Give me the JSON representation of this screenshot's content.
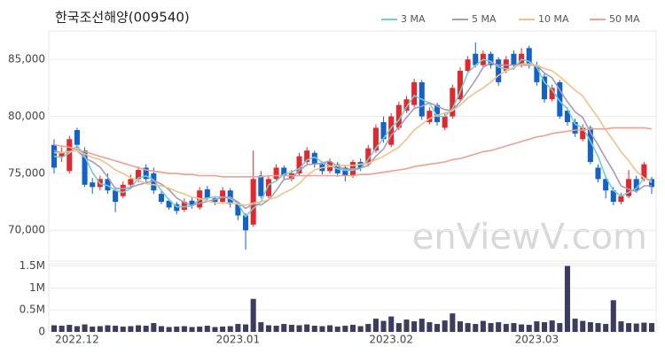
{
  "chart_data": {
    "type": "candlestick",
    "title": "한국조선해양(009540)",
    "watermark": "enViewV.com",
    "categories": [
      null,
      null,
      null,
      "2022.12",
      null,
      null,
      null,
      null,
      null,
      null,
      null,
      null,
      null,
      null,
      null,
      null,
      null,
      null,
      null,
      null,
      null,
      null,
      null,
      null,
      "2023.01",
      null,
      null,
      null,
      null,
      null,
      null,
      null,
      null,
      null,
      null,
      null,
      null,
      null,
      null,
      null,
      null,
      null,
      null,
      null,
      "2023.02",
      null,
      null,
      null,
      null,
      null,
      null,
      null,
      null,
      null,
      null,
      null,
      null,
      null,
      null,
      null,
      null,
      null,
      null,
      "2023.03",
      null,
      null,
      null,
      null,
      null,
      null,
      null,
      null,
      null,
      null,
      null,
      null,
      null,
      null,
      null
    ],
    "open": [
      77500,
      76500,
      75200,
      78800,
      77000,
      74200,
      73800,
      74500,
      73500,
      73000,
      74000,
      74500,
      75500,
      75000,
      73200,
      72600,
      72300,
      71800,
      72600,
      72000,
      73600,
      72800,
      72500,
      73500,
      72300,
      71300,
      70500,
      74800,
      73000,
      74500,
      75500,
      74500,
      75000,
      76000,
      76800,
      75800,
      75200,
      75800,
      75500,
      74800,
      76000,
      75800,
      77000,
      79500,
      77500,
      79000,
      80500,
      81000,
      83000,
      79500,
      81000,
      79000,
      80000,
      81500,
      84000,
      85500,
      84500,
      85500,
      85000,
      84000,
      85500,
      84500,
      86000,
      84500,
      83500,
      81500,
      83000,
      80500,
      79500,
      78000,
      79000,
      75500,
      74500,
      73500,
      72500,
      73000,
      74500,
      74500,
      74500
    ],
    "high": [
      78000,
      77300,
      78300,
      79000,
      77300,
      74600,
      74800,
      75000,
      73800,
      74300,
      74900,
      75600,
      75800,
      75500,
      73500,
      72800,
      72500,
      72800,
      72900,
      73800,
      73900,
      73000,
      73800,
      73700,
      72500,
      71500,
      77000,
      75200,
      74800,
      75800,
      75700,
      75300,
      76800,
      77300,
      77000,
      76000,
      76300,
      76000,
      75700,
      76200,
      76300,
      77500,
      79300,
      80000,
      80300,
      81300,
      81800,
      83300,
      83200,
      80800,
      81200,
      80300,
      82800,
      84300,
      85300,
      86500,
      85800,
      85700,
      85200,
      85300,
      85800,
      86000,
      86200,
      84800,
      83800,
      82800,
      83200,
      80800,
      79800,
      79300,
      79200,
      75800,
      74800,
      73800,
      73300,
      75300,
      74800,
      76000,
      74700
    ],
    "low": [
      75000,
      76000,
      75000,
      77200,
      73800,
      73200,
      73500,
      73200,
      71600,
      72800,
      73700,
      74200,
      74200,
      73200,
      72300,
      71800,
      71400,
      71600,
      71900,
      71800,
      72600,
      72200,
      72300,
      72000,
      70900,
      68300,
      70300,
      72800,
      72800,
      74300,
      74500,
      74300,
      74800,
      75800,
      75500,
      74900,
      75000,
      74700,
      74300,
      74600,
      75200,
      75600,
      76800,
      77700,
      77300,
      78800,
      80300,
      80800,
      79700,
      79300,
      79200,
      78800,
      79800,
      81300,
      83800,
      84300,
      84300,
      84200,
      82700,
      83800,
      84300,
      84300,
      84200,
      82700,
      81200,
      81300,
      79800,
      79200,
      78200,
      77800,
      75800,
      74200,
      72800,
      72200,
      72300,
      72800,
      73300,
      74300,
      73200
    ],
    "close": [
      75500,
      76800,
      78000,
      77500,
      74000,
      73800,
      74500,
      73500,
      72500,
      74000,
      74500,
      75300,
      74500,
      73500,
      72500,
      72000,
      71700,
      72500,
      72200,
      73500,
      72800,
      72500,
      73500,
      72300,
      71300,
      70000,
      74500,
      73000,
      74500,
      75500,
      74800,
      75000,
      76500,
      77000,
      75800,
      75200,
      76000,
      75000,
      74800,
      76000,
      75500,
      77200,
      79000,
      78000,
      80000,
      81000,
      81500,
      83000,
      80000,
      80500,
      79500,
      80000,
      82500,
      84000,
      85000,
      84500,
      85500,
      84500,
      83000,
      85000,
      84500,
      85500,
      84500,
      83000,
      81500,
      82500,
      80000,
      79500,
      78500,
      79000,
      76000,
      74500,
      73500,
      72500,
      73000,
      74500,
      73500,
      75800,
      73800
    ],
    "up_color": "#e0282e",
    "down_color": "#1461c8",
    "ylim": [
      67300,
      87500
    ],
    "yticks": [
      {
        "value": 70000,
        "label": "70,000"
      },
      {
        "value": 75000,
        "label": "75,000"
      },
      {
        "value": 80000,
        "label": "80,000"
      },
      {
        "value": 85000,
        "label": "85,000"
      }
    ],
    "grid": true,
    "legend": "top-right",
    "moving_averages": [
      {
        "name": "3 MA",
        "color": "#6fd0d0",
        "values": [
          76500,
          76400,
          76770,
          77430,
          76500,
          75100,
          74100,
          73930,
          73500,
          73330,
          73670,
          74600,
          74770,
          74430,
          73500,
          72670,
          72070,
          72070,
          72130,
          72730,
          72830,
          72930,
          72930,
          72770,
          72370,
          71200,
          71930,
          72500,
          74000,
          74330,
          74930,
          75100,
          75430,
          76170,
          76430,
          76000,
          75670,
          75400,
          75270,
          75270,
          75430,
          76230,
          77230,
          78070,
          79000,
          79670,
          80830,
          81830,
          81500,
          81170,
          80000,
          80000,
          80670,
          82170,
          83830,
          84500,
          85000,
          84830,
          84330,
          84170,
          84170,
          85000,
          84830,
          84330,
          83000,
          82330,
          81330,
          80670,
          79330,
          79000,
          77830,
          76500,
          74670,
          73500,
          73000,
          73330,
          73670,
          74600,
          74370
        ]
      },
      {
        "name": "5 MA",
        "color": "#a79bbb",
        "values": [
          77000,
          76800,
          76900,
          77000,
          76360,
          76020,
          75560,
          74660,
          73660,
          73660,
          73760,
          74000,
          74160,
          74360,
          74060,
          73560,
          72840,
          72440,
          72180,
          72380,
          72540,
          72700,
          72900,
          72920,
          72480,
          71920,
          72320,
          72220,
          72660,
          73500,
          74460,
          74560,
          75260,
          75760,
          75820,
          75900,
          76100,
          75600,
          75360,
          75400,
          75460,
          75700,
          76500,
          77140,
          78340,
          79040,
          79900,
          80700,
          80900,
          81200,
          80900,
          80600,
          80500,
          81300,
          82200,
          83200,
          84300,
          84700,
          84500,
          84500,
          84500,
          84500,
          84500,
          84500,
          83800,
          83400,
          82300,
          81300,
          80400,
          79900,
          78600,
          77500,
          76300,
          75200,
          73900,
          73600,
          73400,
          73900,
          73900
        ]
      },
      {
        "name": "10 MA",
        "color": "#f0c28a",
        "values": [
          76800,
          76800,
          76900,
          77000,
          76700,
          76400,
          76200,
          75800,
          75300,
          75000,
          74600,
          74400,
          74100,
          74000,
          73900,
          73700,
          73400,
          73200,
          72900,
          72800,
          72600,
          72400,
          72400,
          72400,
          72300,
          72200,
          72400,
          72500,
          72700,
          72900,
          73300,
          73600,
          74100,
          74800,
          75300,
          75500,
          75600,
          75700,
          75700,
          75700,
          75800,
          75900,
          76200,
          76500,
          76900,
          77300,
          78000,
          78800,
          79300,
          79800,
          80100,
          80300,
          80500,
          81000,
          81600,
          82100,
          82500,
          83000,
          83600,
          84000,
          84300,
          84600,
          84600,
          84500,
          84200,
          84000,
          83500,
          82900,
          82300,
          81800,
          80800,
          79900,
          78800,
          77900,
          76900,
          76100,
          75200,
          74600,
          74200
        ]
      },
      {
        "name": "50 MA",
        "color": "#f0a090",
        "values": [
          77500,
          77400,
          77300,
          77100,
          76900,
          76700,
          76500,
          76300,
          76100,
          75900,
          75700,
          75500,
          75300,
          75200,
          75100,
          75000,
          75000,
          74900,
          74900,
          74800,
          74800,
          74800,
          74700,
          74700,
          74700,
          74700,
          74700,
          74700,
          74800,
          74800,
          74800,
          74800,
          74800,
          74800,
          74800,
          74800,
          74800,
          74800,
          74800,
          74800,
          74900,
          74900,
          75000,
          75100,
          75200,
          75300,
          75400,
          75600,
          75700,
          75800,
          75900,
          76000,
          76200,
          76300,
          76500,
          76700,
          76900,
          77000,
          77200,
          77400,
          77600,
          77800,
          78000,
          78200,
          78300,
          78500,
          78600,
          78700,
          78800,
          78800,
          78900,
          78900,
          78900,
          79000,
          79000,
          79000,
          79000,
          79000,
          78900
        ]
      }
    ],
    "volume": {
      "color": "#3c3d5e",
      "values": [
        150000,
        140000,
        160000,
        130000,
        170000,
        120000,
        130000,
        150000,
        140000,
        120000,
        130000,
        150000,
        140000,
        200000,
        130000,
        110000,
        120000,
        130000,
        110000,
        120000,
        140000,
        110000,
        120000,
        130000,
        180000,
        170000,
        750000,
        220000,
        150000,
        140000,
        180000,
        160000,
        150000,
        170000,
        140000,
        130000,
        150000,
        120000,
        140000,
        160000,
        130000,
        180000,
        300000,
        250000,
        350000,
        200000,
        280000,
        240000,
        300000,
        220000,
        180000,
        260000,
        420000,
        240000,
        200000,
        180000,
        250000,
        200000,
        220000,
        180000,
        200000,
        170000,
        160000,
        240000,
        220000,
        260000,
        200000,
        1500000,
        300000,
        250000,
        220000,
        200000,
        180000,
        720000,
        240000,
        200000,
        190000,
        210000,
        200000
      ],
      "ylim": [
        0,
        1550000
      ],
      "yticks": [
        0,
        {
          "value": 500000,
          "label": "0.5M"
        },
        {
          "value": 1000000,
          "label": "1M"
        },
        {
          "value": 1500000,
          "label": "1.5M"
        }
      ]
    }
  }
}
